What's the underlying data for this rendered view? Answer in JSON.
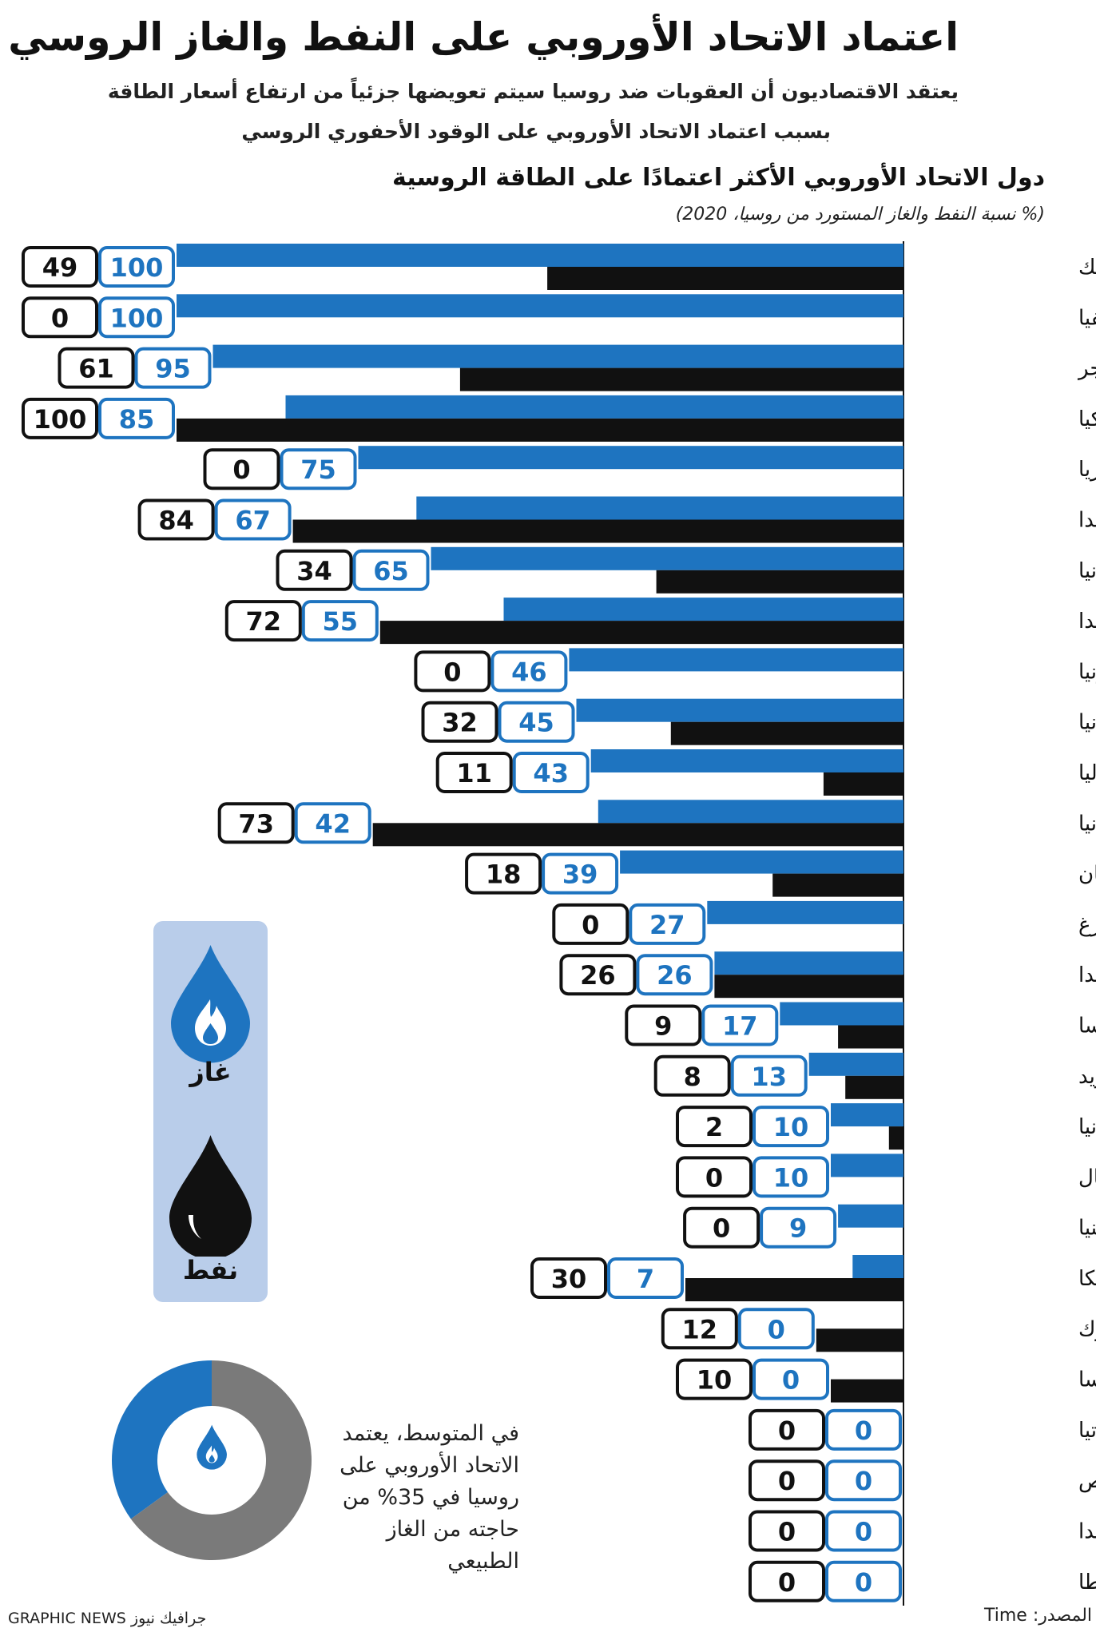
{
  "header": {
    "title": "اعتماد الاتحاد الأوروبي على النفط والغاز الروسي",
    "subtitle_line1": "يعتقد الاقتصاديون أن العقوبات ضد روسيا سيتم تعويضها جزئياً من ارتفاع أسعار الطاقة",
    "subtitle_line2": "بسبب اعتماد الاتحاد الأوروبي على الوقود الأحفوري الروسي"
  },
  "section": {
    "title": "دول الاتحاد الأوروبي الأكثر اعتمادًا على الطاقة الروسية",
    "note": "(% نسبة النفط والغاز المستورد من روسيا، 2020)"
  },
  "colors": {
    "gas": "#1e74c0",
    "oil": "#111111",
    "panel": "#b9cdea",
    "donut_rest": "#7a7a7a"
  },
  "legend": {
    "gas_label": "غاز",
    "oil_label": "نفط",
    "gas_icon": "gas-flame-drop-icon",
    "oil_icon": "oil-drop-icon"
  },
  "chart_data": {
    "type": "bar",
    "orientation": "horizontal",
    "categories": [
      "جمهورية التشيك",
      "لاتفيا",
      "المجر",
      "سلوفاكيا",
      "بلغاريا",
      "فنلندا",
      "ألمانيا",
      "بولندا",
      "إستونيا",
      "رومانيا",
      "إيطاليا",
      "ليتوانيا",
      "اليونان",
      "لوكسمبورغ",
      "هولندا",
      "فرنسا",
      "السويد",
      "إسبانيا",
      "البرتغال",
      "سلوفينيا",
      "بلجيكا",
      "الدنمارك",
      "النمسا",
      "كرواتيا",
      "قبرص",
      "إيرلندا",
      "مالطا"
    ],
    "series": [
      {
        "name": "غاز",
        "values": [
          100,
          100,
          95,
          85,
          75,
          67,
          65,
          55,
          46,
          45,
          43,
          42,
          39,
          27,
          26,
          17,
          13,
          10,
          10,
          9,
          7,
          0,
          0,
          0,
          0,
          0,
          0
        ]
      },
      {
        "name": "نفط",
        "values": [
          49,
          0,
          61,
          100,
          0,
          84,
          34,
          72,
          0,
          32,
          11,
          73,
          18,
          0,
          26,
          9,
          8,
          2,
          0,
          0,
          30,
          12,
          10,
          0,
          0,
          0,
          0
        ]
      }
    ],
    "xlim": [
      0,
      100
    ]
  },
  "average": {
    "note_lines": [
      "في المتوسط، يعتمد",
      "الاتحاد الأوروبي على",
      "روسيا في 35% من",
      "حاجته من الغاز",
      "الطبيعي"
    ],
    "gas_share": 35,
    "icon": "gas-flame-drop-icon"
  },
  "footer": {
    "source": "المصدر: Time",
    "credit": "GRAPHIC NEWS جرافيك نيوز"
  }
}
